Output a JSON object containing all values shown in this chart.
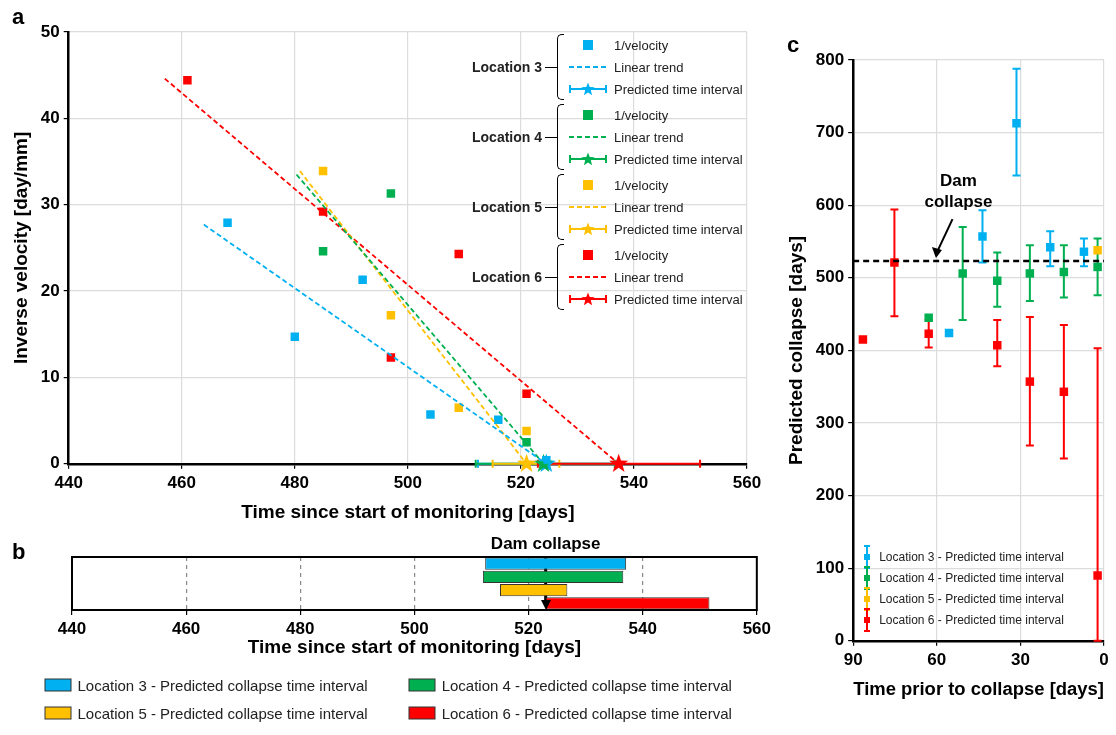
{
  "chart_data": [
    {
      "type": "scatter",
      "title": "a",
      "xlabel": "Time since start of monitoring [days]",
      "ylabel": "Inverse velocity [day/mm]",
      "xlim": [
        440,
        560
      ],
      "xticks": [
        440,
        460,
        480,
        500,
        520,
        540,
        560
      ],
      "ylim": [
        0,
        50
      ],
      "yticks": [
        0,
        10,
        20,
        30,
        40,
        50
      ],
      "grid": true,
      "legend": "top right",
      "marker": "square",
      "annotations": [
        "Location 3",
        "Location 4",
        "Location 5",
        "Location 6"
      ],
      "series": [
        {
          "name": "1/velocity",
          "type": "scatter",
          "color": "#00b0f0",
          "x": [
            468.1,
            480,
            492,
            504,
            516,
            524.5
          ],
          "values": [
            27.9,
            14.7,
            21.3,
            5.7,
            5.1,
            0.4
          ]
        },
        {
          "name": "Linear trend",
          "type": "line",
          "marker": "none",
          "line_style": "dashed",
          "color": "#00b0f0",
          "x": [
            463.9,
            524.5
          ],
          "values": [
            27.7,
            0
          ]
        },
        {
          "name": "Predicted time interval",
          "type": "scatter",
          "marker": "star",
          "color": "#00b0f0",
          "x": [
            524.5
          ],
          "values": [
            0
          ],
          "xerrors": [
            [
              512.4,
              537.1
            ]
          ]
        },
        {
          "name": "1/velocity",
          "type": "scatter",
          "color": "#00b050",
          "x": [
            485,
            497,
            521
          ],
          "values": [
            24.6,
            31.3,
            2.5
          ]
        },
        {
          "name": "Linear trend",
          "type": "line",
          "marker": "none",
          "line_style": "dashed",
          "color": "#00b050",
          "x": [
            480.3,
            524
          ],
          "values": [
            33.5,
            0
          ]
        },
        {
          "name": "Predicted time interval",
          "type": "scatter",
          "marker": "star",
          "color": "#00b050",
          "x": [
            524
          ],
          "values": [
            0
          ],
          "xerrors": [
            [
              512,
              536.6
            ]
          ]
        },
        {
          "name": "1/velocity",
          "type": "scatter",
          "color": "#ffc000",
          "x": [
            485,
            497,
            509,
            521
          ],
          "values": [
            33.9,
            17.2,
            6.5,
            3.8
          ]
        },
        {
          "name": "Linear trend",
          "type": "line",
          "marker": "none",
          "line_style": "dashed",
          "color": "#ffc000",
          "x": [
            480.9,
            521
          ],
          "values": [
            33.9,
            0
          ]
        },
        {
          "name": "Predicted time interval",
          "type": "scatter",
          "marker": "star",
          "color": "#ffc000",
          "x": [
            521
          ],
          "values": [
            0
          ],
          "xerrors": [
            [
              515,
              526.8
            ]
          ]
        },
        {
          "name": "1/velocity",
          "type": "scatter",
          "color": "#ff0000",
          "x": [
            461,
            485,
            497,
            509,
            521
          ],
          "values": [
            44.4,
            29.2,
            12.3,
            24.3,
            8.1
          ]
        },
        {
          "name": "Linear trend",
          "type": "line",
          "marker": "none",
          "line_style": "dashed",
          "color": "#ff0000",
          "x": [
            457,
            537.3
          ],
          "values": [
            44.6,
            0
          ]
        },
        {
          "name": "Predicted time interval",
          "type": "scatter",
          "marker": "star",
          "color": "#ff0000",
          "x": [
            537.3
          ],
          "values": [
            0
          ],
          "xerrors": [
            [
              523,
              551.7
            ]
          ]
        }
      ]
    },
    {
      "type": "bar",
      "title": "b",
      "orientation": "horizontal",
      "tick_labels": "x",
      "categories": [
        null
      ],
      "xlabel": "Time since start of monitoring [days]",
      "xlim": [
        440,
        560
      ],
      "xticks": [
        440,
        460,
        480,
        500,
        520,
        540,
        560
      ],
      "grid": "x",
      "legend": "bottom",
      "ref_lines": [
        {
          "axis": "x",
          "value": 523,
          "label": "Dam collapse",
          "color": "#000000",
          "line_style": "solid"
        }
      ],
      "series": [
        {
          "name": "Location 3 - Predicted collapse time interval",
          "color": "#00b0f0",
          "base": [
            512.4
          ],
          "values": [
            24.7
          ]
        },
        {
          "name": "Location 4 - Predicted collapse time interval",
          "color": "#00b050",
          "base": [
            512
          ],
          "values": [
            24.6
          ]
        },
        {
          "name": "Location 5 - Predicted collapse time interval",
          "color": "#ffc000",
          "base": [
            515
          ],
          "values": [
            11.8
          ]
        },
        {
          "name": "Location 6 - Predicted collapse time interval",
          "color": "#ff0000",
          "base": [
            523
          ],
          "values": [
            28.7
          ]
        }
      ]
    },
    {
      "type": "scatter",
      "title": "c",
      "xlabel": "Time prior to collapse [days]",
      "ylabel": "Predicted collapse [days]",
      "xlim": [
        90,
        0
      ],
      "xticks": [
        90,
        60,
        30,
        0
      ],
      "ylim": [
        0,
        800
      ],
      "yticks": [
        0,
        100,
        200,
        300,
        400,
        500,
        600,
        700,
        800
      ],
      "grid": true,
      "legend": "bottom left",
      "marker": "square",
      "ref_lines": [
        {
          "axis": "y",
          "value": 523,
          "label": "Dam collapse",
          "color": "#000000",
          "line_style": "dashed"
        }
      ],
      "series": [
        {
          "name": "Location 3 - Predicted time interval",
          "color": "#00b0f0",
          "x": [
            55.6,
            43.6,
            31.4,
            19.3,
            7.2
          ],
          "values": [
            424,
            557,
            713,
            542,
            536
          ],
          "errors": [
            null,
            [
              521,
              593
            ],
            [
              641,
              788
            ],
            [
              516,
              564
            ],
            [
              516,
              554
            ]
          ]
        },
        {
          "name": "Location 4 - Predicted time interval",
          "color": "#00b050",
          "x": [
            62.9,
            50.7,
            38.3,
            26.6,
            14.4,
            2.3
          ],
          "values": [
            445,
            506,
            496,
            506,
            508,
            515
          ],
          "errors": [
            null,
            [
              442,
              570
            ],
            [
              460,
              535
            ],
            [
              468,
              545
            ],
            [
              473,
              545
            ],
            [
              476,
              554
            ]
          ]
        },
        {
          "name": "Location 5 - Predicted time interval",
          "color": "#ffc000",
          "x": [
            2.3
          ],
          "values": [
            538
          ],
          "errors": [
            null
          ]
        },
        {
          "name": "Location 6 - Predicted time interval",
          "color": "#ff0000",
          "x": [
            86.5,
            75.2,
            62.9,
            38.3,
            26.6,
            14.4,
            2.3
          ],
          "values": [
            415,
            521,
            423,
            407,
            357,
            343,
            90
          ],
          "errors": [
            null,
            [
              447,
              594
            ],
            [
              404,
              442
            ],
            [
              378,
              442
            ],
            [
              269,
              446
            ],
            [
              251,
              435
            ],
            [
              0,
              403
            ]
          ]
        }
      ]
    }
  ]
}
